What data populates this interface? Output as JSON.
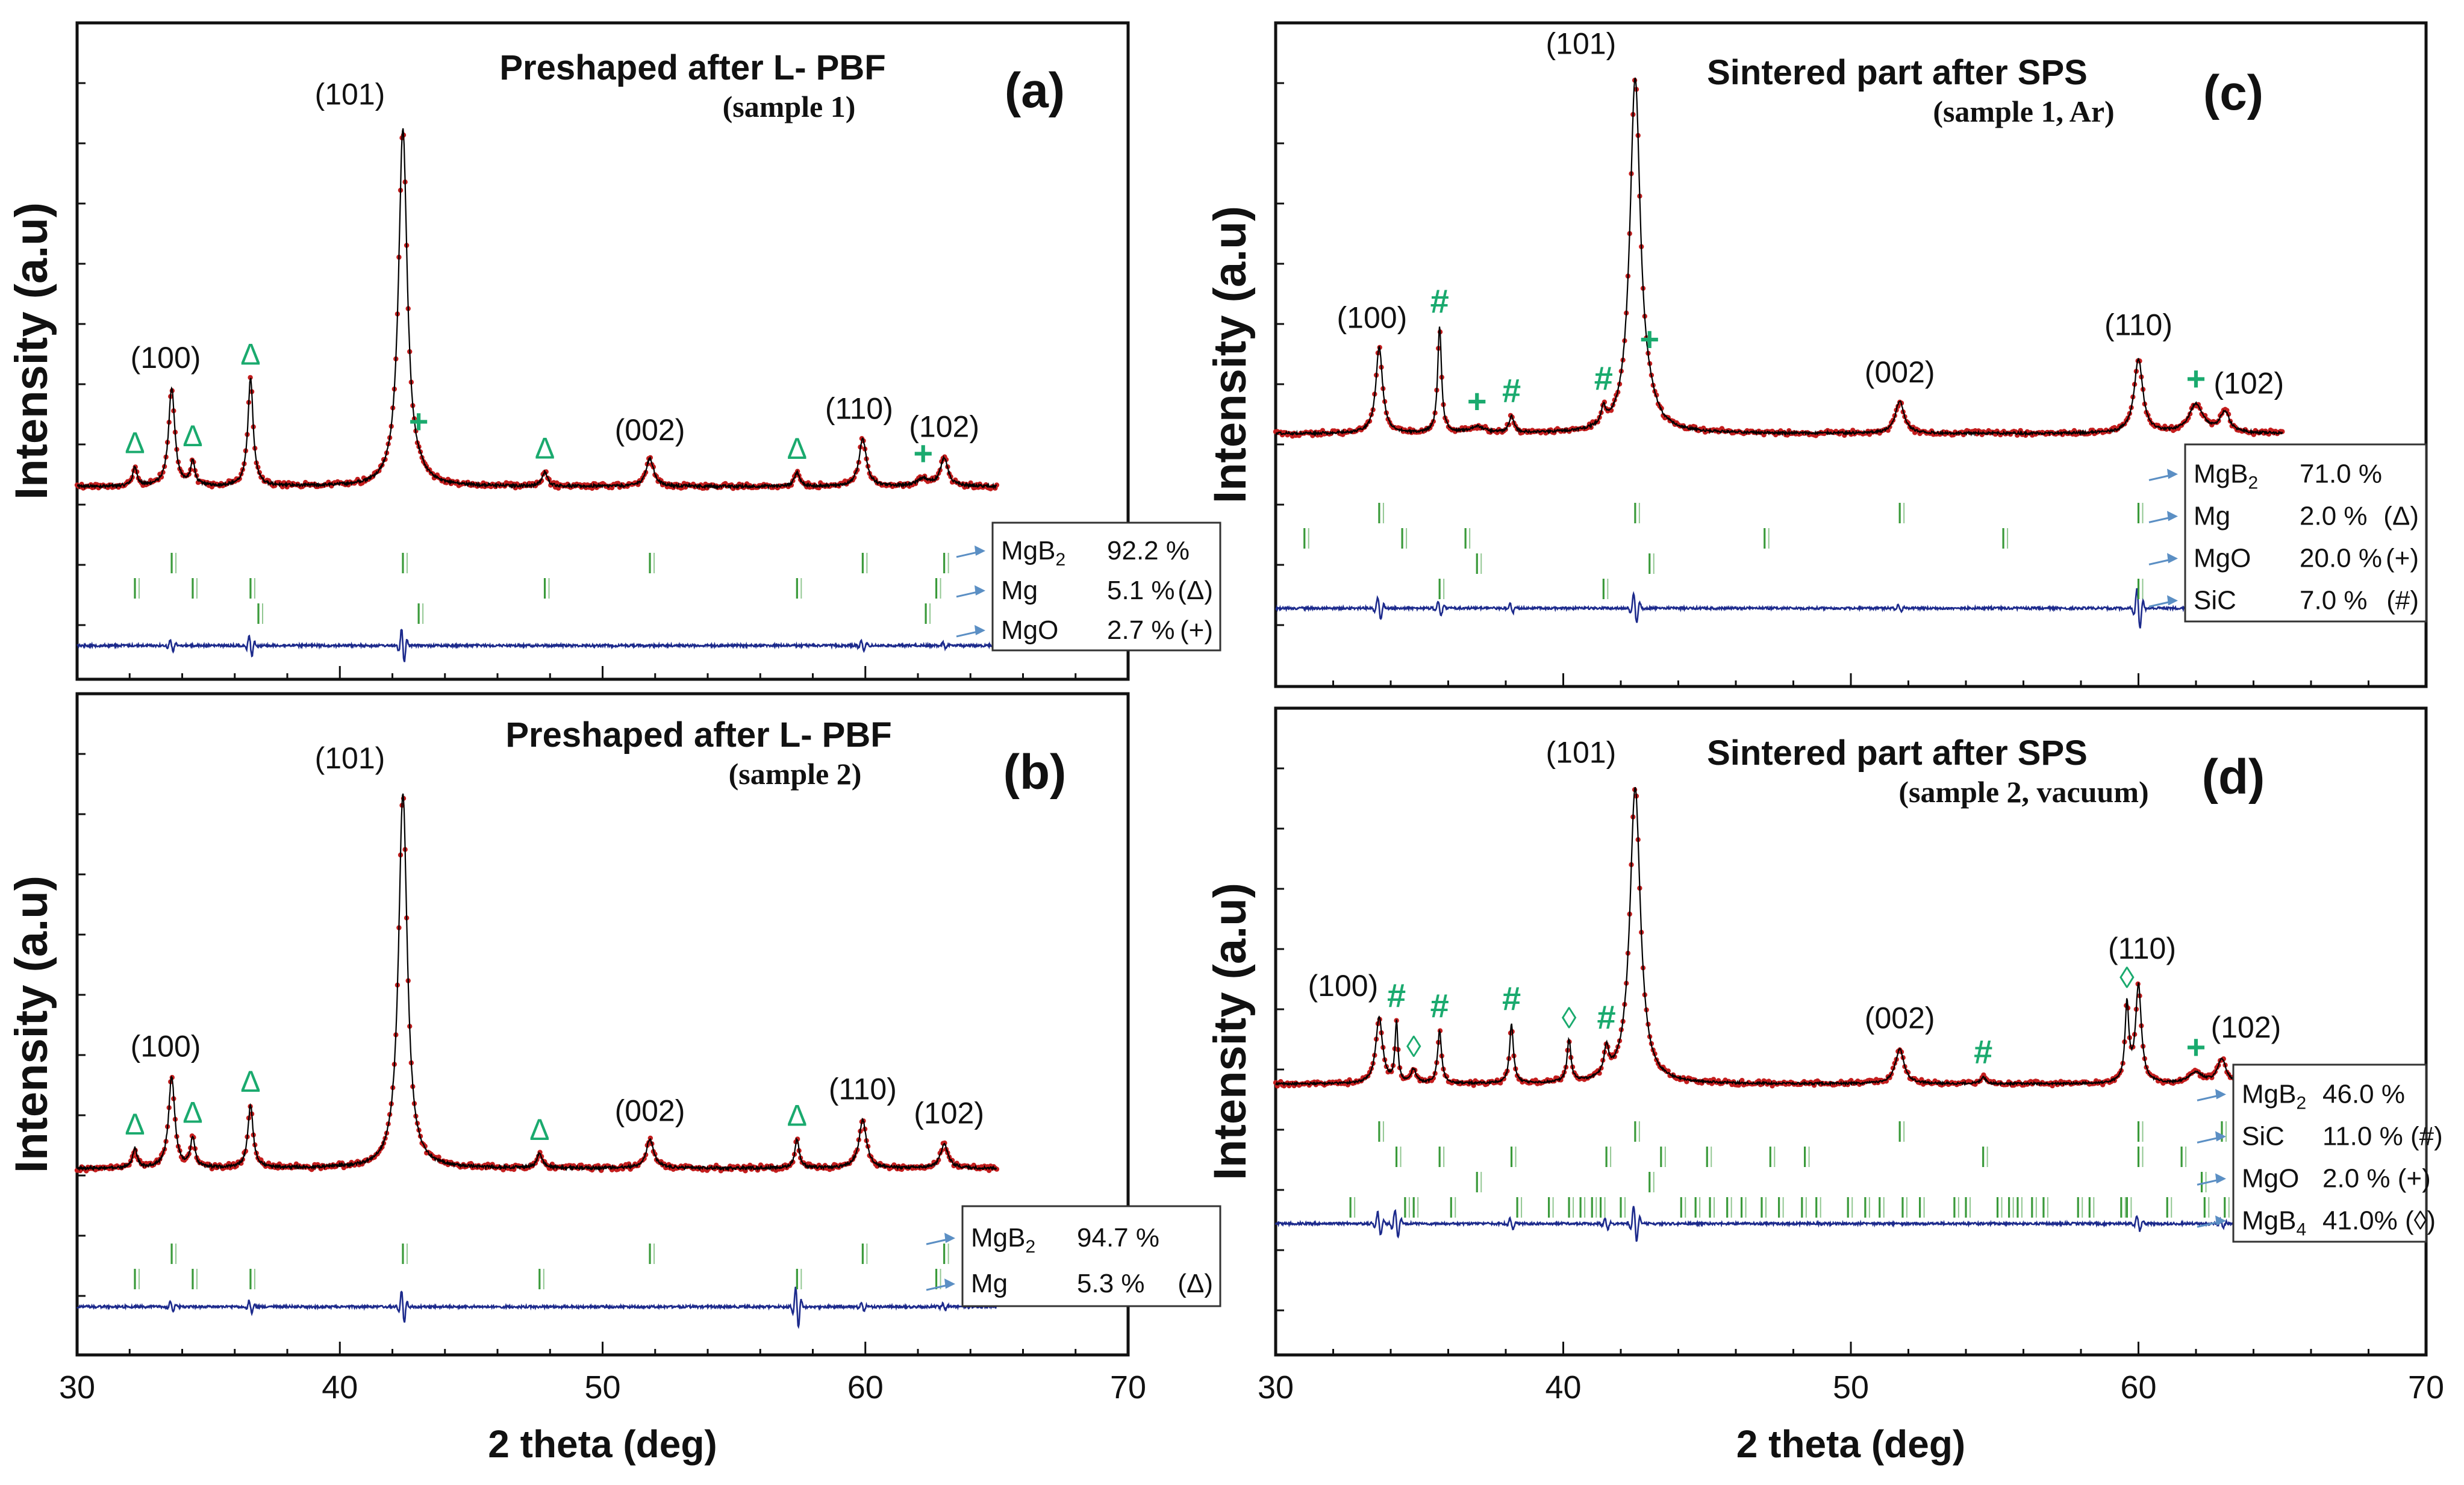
{
  "figure": {
    "x_axis_label": "2 theta (deg)",
    "y_axis_label": "Intensity (a.u)",
    "x_ticks": [
      "30",
      "40",
      "50",
      "60",
      "70"
    ],
    "colors": {
      "observed": "#c41e1e",
      "calculated": "#000000",
      "difference": "#1c2a8c",
      "bragg_ticks": "#3a9a3a",
      "phase_marker": "#1aaa6e",
      "arrow": "#5b8fc4",
      "frame": "#111111"
    }
  },
  "chart_data": [
    {
      "id": "a",
      "type": "line",
      "title": "Preshaped  after L- PBF",
      "subtitle": "(sample 1)",
      "panel_label": "(a)",
      "xlim": [
        30,
        70
      ],
      "xlabel": "2 theta (deg)",
      "ylabel": "Intensity (a.u)",
      "data_range": [
        30,
        65
      ],
      "peaks": [
        {
          "x": 33.6,
          "h": 0.21,
          "w": 0.14,
          "label": "(100)"
        },
        {
          "x": 42.4,
          "h": 0.76,
          "w": 0.2,
          "label": "(101)"
        },
        {
          "x": 51.8,
          "h": 0.06,
          "w": 0.17,
          "label": "(002)"
        },
        {
          "x": 59.9,
          "h": 0.1,
          "w": 0.17,
          "label": "(110)"
        },
        {
          "x": 63.0,
          "h": 0.06,
          "w": 0.17,
          "label": "(102)"
        },
        {
          "x": 32.2,
          "h": 0.04,
          "w": 0.1,
          "label": "Δ"
        },
        {
          "x": 34.4,
          "h": 0.05,
          "w": 0.1,
          "label": "Δ"
        },
        {
          "x": 36.6,
          "h": 0.23,
          "w": 0.12,
          "label": "Δ"
        },
        {
          "x": 47.8,
          "h": 0.03,
          "w": 0.12,
          "label": "Δ"
        },
        {
          "x": 57.4,
          "h": 0.03,
          "w": 0.12,
          "label": "Δ"
        },
        {
          "x": 43.0,
          "h": 0.01,
          "w": 0.3,
          "label": "+"
        },
        {
          "x": 62.2,
          "h": 0.015,
          "w": 0.3,
          "label": "+"
        }
      ],
      "phases": [
        {
          "name": "MgB",
          "sub": "2",
          "percent": "92.2 %",
          "symbol": "",
          "ticks": [
            33.6,
            42.4,
            51.8,
            59.9,
            63.0
          ]
        },
        {
          "name": "Mg",
          "sub": "",
          "percent": "5.1 %",
          "symbol": "(Δ)",
          "ticks": [
            32.2,
            34.4,
            36.6,
            47.8,
            57.4,
            62.7
          ]
        },
        {
          "name": "MgO",
          "sub": "",
          "percent": "2.7 %",
          "symbol": "(+)",
          "ticks": [
            36.9,
            43.0,
            62.3
          ]
        }
      ]
    },
    {
      "id": "b",
      "type": "line",
      "title": "Preshaped after L- PBF",
      "subtitle": "(sample 2)",
      "panel_label": "(b)",
      "xlim": [
        30,
        70
      ],
      "xlabel": "2 theta (deg)",
      "ylabel": "Intensity (a.u)",
      "data_range": [
        30,
        65
      ],
      "peaks": [
        {
          "x": 33.6,
          "h": 0.19,
          "w": 0.14,
          "label": "(100)"
        },
        {
          "x": 42.4,
          "h": 0.78,
          "w": 0.2,
          "label": "(101)"
        },
        {
          "x": 51.8,
          "h": 0.06,
          "w": 0.17,
          "label": "(002)"
        },
        {
          "x": 59.9,
          "h": 0.1,
          "w": 0.17,
          "label": "(110)"
        },
        {
          "x": 63.0,
          "h": 0.05,
          "w": 0.17,
          "label": "(102)"
        },
        {
          "x": 32.2,
          "h": 0.04,
          "w": 0.1,
          "label": "Δ"
        },
        {
          "x": 34.4,
          "h": 0.06,
          "w": 0.1,
          "label": "Δ"
        },
        {
          "x": 36.6,
          "h": 0.13,
          "w": 0.12,
          "label": "Δ"
        },
        {
          "x": 47.6,
          "h": 0.03,
          "w": 0.12,
          "label": "Δ"
        },
        {
          "x": 57.4,
          "h": 0.06,
          "w": 0.1,
          "label": "Δ"
        }
      ],
      "phases": [
        {
          "name": "MgB",
          "sub": "2",
          "percent": "94.7 %",
          "symbol": "",
          "ticks": [
            33.6,
            42.4,
            51.8,
            59.9,
            63.0
          ]
        },
        {
          "name": "Mg",
          "sub": "",
          "percent": "5.3 %",
          "symbol": "(Δ)",
          "ticks": [
            32.2,
            34.4,
            36.6,
            47.6,
            57.4,
            62.7
          ]
        }
      ]
    },
    {
      "id": "c",
      "type": "line",
      "title": "Sintered part after SPS",
      "subtitle": "(sample 1, Ar)",
      "panel_label": "(c)",
      "xlim": [
        30,
        70
      ],
      "xlabel": "2 theta (deg)",
      "ylabel": "Intensity (a.u)",
      "data_range": [
        30,
        65
      ],
      "peaks": [
        {
          "x": 33.6,
          "h": 0.21,
          "w": 0.14,
          "label": "(100)"
        },
        {
          "x": 42.5,
          "h": 0.86,
          "w": 0.22,
          "label": "(101)"
        },
        {
          "x": 51.7,
          "h": 0.08,
          "w": 0.18,
          "label": "(002)"
        },
        {
          "x": 60.0,
          "h": 0.18,
          "w": 0.18,
          "label": "(110)"
        },
        {
          "x": 63.0,
          "h": 0.05,
          "w": 0.2,
          "label": "(102)"
        },
        {
          "x": 35.7,
          "h": 0.26,
          "w": 0.08,
          "label": "#"
        },
        {
          "x": 38.2,
          "h": 0.04,
          "w": 0.1,
          "label": "#"
        },
        {
          "x": 41.4,
          "h": 0.04,
          "w": 0.1,
          "label": "#"
        },
        {
          "x": 37.0,
          "h": 0.015,
          "w": 0.3,
          "label": "+"
        },
        {
          "x": 43.0,
          "h": 0.03,
          "w": 0.3,
          "label": "+"
        },
        {
          "x": 62.0,
          "h": 0.07,
          "w": 0.3,
          "label": "+"
        }
      ],
      "phases": [
        {
          "name": "MgB",
          "sub": "2",
          "percent": "71.0 %",
          "symbol": "",
          "ticks": [
            33.6,
            42.5,
            51.7,
            60.0,
            63.0
          ]
        },
        {
          "name": "Mg",
          "sub": "",
          "percent": "2.0 %",
          "symbol": "(Δ)",
          "ticks": [
            31.0,
            34.4,
            36.6,
            47.0,
            55.3,
            62.7
          ]
        },
        {
          "name": "MgO",
          "sub": "",
          "percent": "20.0 %",
          "symbol": "(+)",
          "ticks": [
            37.0,
            43.0,
            62.2
          ]
        },
        {
          "name": "SiC",
          "sub": "",
          "percent": "7.0 %",
          "symbol": "(#)",
          "ticks": [
            35.7,
            41.4,
            60.0
          ]
        }
      ]
    },
    {
      "id": "d",
      "type": "line",
      "title": "Sintered part after SPS",
      "subtitle": "(sample 2, vacuum)",
      "panel_label": "(d)",
      "xlim": [
        30,
        70
      ],
      "xlabel": "2 theta (deg)",
      "ylabel": "Intensity (a.u)",
      "data_range": [
        30,
        65
      ],
      "peaks": [
        {
          "x": 33.6,
          "h": 0.19,
          "w": 0.14,
          "label": "(100)"
        },
        {
          "x": 42.5,
          "h": 0.85,
          "w": 0.22,
          "label": "(101)"
        },
        {
          "x": 51.7,
          "h": 0.1,
          "w": 0.18,
          "label": "(002)"
        },
        {
          "x": 60.0,
          "h": 0.28,
          "w": 0.12,
          "label": "(110)"
        },
        {
          "x": 62.9,
          "h": 0.07,
          "w": 0.18,
          "label": "(102)"
        },
        {
          "x": 34.2,
          "h": 0.17,
          "w": 0.06,
          "label": "#"
        },
        {
          "x": 35.7,
          "h": 0.15,
          "w": 0.08,
          "label": "#"
        },
        {
          "x": 38.2,
          "h": 0.17,
          "w": 0.08,
          "label": "#"
        },
        {
          "x": 41.5,
          "h": 0.08,
          "w": 0.1,
          "label": "#"
        },
        {
          "x": 54.6,
          "h": 0.02,
          "w": 0.1,
          "label": "#"
        },
        {
          "x": 34.8,
          "h": 0.04,
          "w": 0.1,
          "label": "◊"
        },
        {
          "x": 40.2,
          "h": 0.12,
          "w": 0.08,
          "label": "◊"
        },
        {
          "x": 59.6,
          "h": 0.22,
          "w": 0.08,
          "label": "◊"
        },
        {
          "x": 62.0,
          "h": 0.03,
          "w": 0.3,
          "label": "+"
        }
      ],
      "phases": [
        {
          "name": "MgB",
          "sub": "2",
          "percent": "46.0 %",
          "symbol": "",
          "ticks": [
            33.6,
            42.5,
            51.7,
            60.0,
            62.9
          ]
        },
        {
          "name": "SiC",
          "sub": "",
          "percent": "11.0 % (#)",
          "symbol": "",
          "ticks": [
            34.2,
            35.7,
            38.2,
            41.5,
            43.4,
            45.0,
            47.2,
            48.4,
            54.6,
            60.0,
            61.5
          ]
        },
        {
          "name": "MgO",
          "sub": "",
          "percent": "2.0 % (+)",
          "symbol": "",
          "ticks": [
            37.0,
            43.0,
            62.2
          ]
        },
        {
          "name": "MgB",
          "sub": "4",
          "percent": "41.0% (◊)",
          "symbol": "",
          "ticks": [
            32.6,
            34.5,
            34.8,
            36.1,
            38.4,
            39.5,
            40.2,
            40.6,
            41.0,
            41.3,
            42.0,
            44.1,
            44.6,
            45.1,
            45.7,
            46.2,
            46.9,
            47.5,
            48.3,
            48.8,
            49.9,
            50.5,
            51.0,
            51.8,
            52.4,
            53.6,
            54.0,
            55.1,
            55.5,
            55.8,
            56.3,
            56.7,
            57.9,
            58.3,
            59.4,
            59.6,
            61.0,
            62.3,
            63.0,
            63.6,
            64.2,
            64.6
          ]
        }
      ]
    }
  ]
}
